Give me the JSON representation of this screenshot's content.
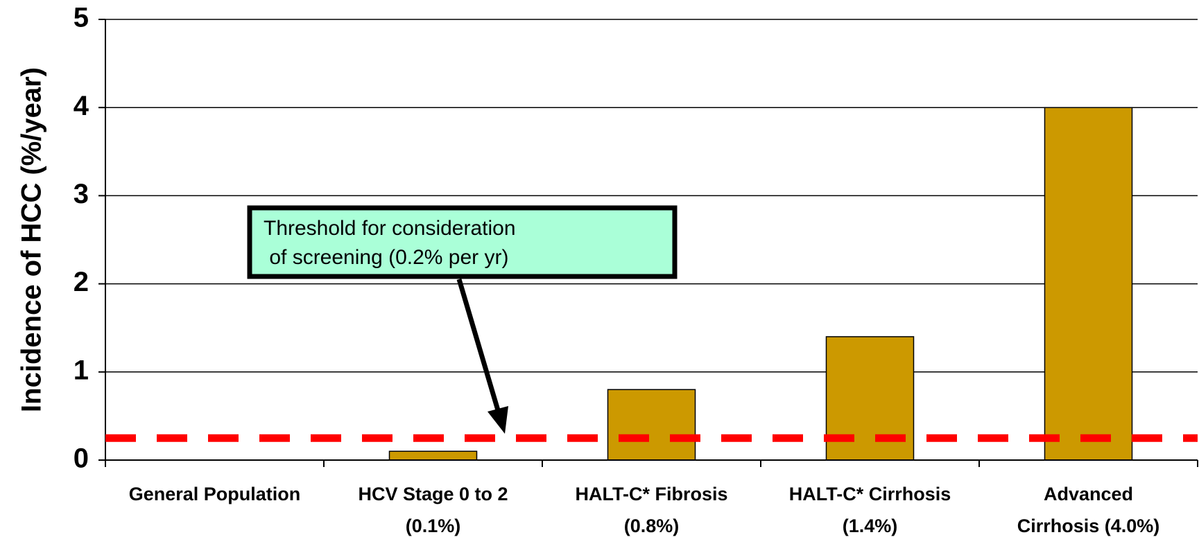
{
  "chart_data": {
    "type": "bar",
    "y_label": "Incidence of HCC (%/year)",
    "categories": [
      [
        "General Population"
      ],
      [
        "HCV Stage 0 to 2",
        "(0.1%)"
      ],
      [
        "HALT-C* Fibrosis",
        "(0.8%)"
      ],
      [
        "HALT-C* Cirrhosis",
        "(1.4%)"
      ],
      [
        "Advanced",
        "Cirrhosis (4.0%)"
      ]
    ],
    "values": [
      null,
      0.1,
      0.8,
      1.4,
      4.0
    ],
    "color": "#cc9900",
    "ylim": [
      0,
      5
    ],
    "yticks": [
      0,
      1,
      2,
      3,
      4,
      5
    ],
    "grid": true,
    "threshold": {
      "value": 0.25,
      "color": "#ff0000"
    },
    "annotation": {
      "lines": [
        "Threshold for consideration",
        " of screening (0.2% per yr)"
      ],
      "fill": "#aaffd8"
    }
  }
}
